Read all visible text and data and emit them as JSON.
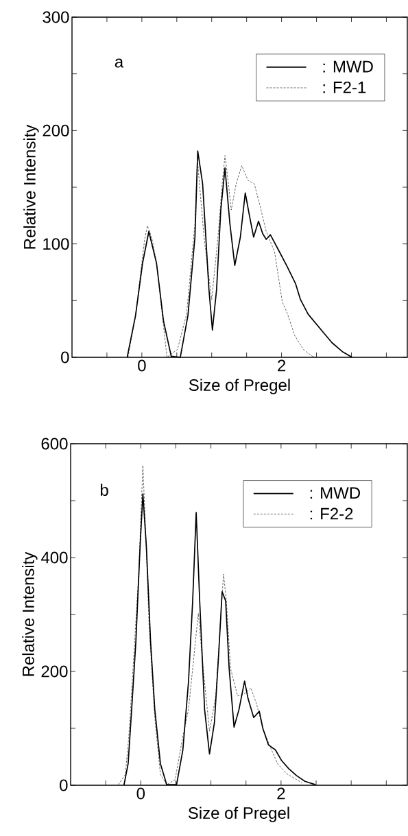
{
  "chart_data": [
    {
      "type": "line",
      "xlabel": "Size of Pregel",
      "ylabel": "Relative Intensity",
      "annotations": [
        "a"
      ],
      "legend": "top right",
      "xlim": [
        -1,
        3.8
      ],
      "ylim": [
        0,
        300
      ],
      "xticks": [
        {
          "value": -0.5,
          "label": null
        },
        0,
        {
          "value": 0.5,
          "label": null
        },
        {
          "value": 1,
          "label": null
        },
        {
          "value": 1.5,
          "label": null
        },
        2,
        {
          "value": 2.5,
          "label": null
        },
        {
          "value": 3,
          "label": null
        },
        {
          "value": 3.5,
          "label": null
        }
      ],
      "yticks": [
        0,
        {
          "value": 50,
          "label": null
        },
        100,
        {
          "value": 150,
          "label": null
        },
        200,
        {
          "value": 250,
          "label": null
        },
        300
      ],
      "series": [
        {
          "name": ": MWD",
          "color": "#000000",
          "line_style": "solid",
          "x": [
            -0.21,
            -0.09,
            0.01,
            0.1,
            0.21,
            0.31,
            0.42,
            0.55,
            0.66,
            0.76,
            0.8,
            0.87,
            0.96,
            1.01,
            1.07,
            1.13,
            1.19,
            1.26,
            1.33,
            1.41,
            1.48,
            1.54,
            1.6,
            1.67,
            1.73,
            1.78,
            1.84,
            1.97,
            2.08,
            2.2,
            2.27,
            2.38,
            2.61,
            2.72,
            2.87,
            3.01
          ],
          "values": [
            0,
            37,
            83,
            111,
            83,
            32,
            1,
            0,
            37,
            106,
            182,
            153,
            60,
            24,
            60,
            130,
            167,
            118,
            81,
            106,
            145,
            125,
            106,
            120,
            109,
            104,
            108,
            93,
            80,
            65,
            51,
            38,
            21,
            13,
            5,
            0
          ]
        },
        {
          "name": ": F2-1",
          "color": "#000000",
          "line_style": "dashed",
          "x": [
            -0.2,
            -0.09,
            0.04,
            0.08,
            0.14,
            0.21,
            0.36,
            0.51,
            0.64,
            0.76,
            0.79,
            0.8,
            0.89,
            1.0,
            1.09,
            1.15,
            1.19,
            1.24,
            1.28,
            1.35,
            1.43,
            1.52,
            1.61,
            1.69,
            1.78,
            1.9,
            2.01,
            2.08,
            2.19,
            2.31,
            2.44,
            2.49
          ],
          "values": [
            0,
            37,
            104,
            116,
            106,
            83,
            0,
            7,
            38,
            118,
            167,
            171,
            106,
            51,
            106,
            153,
            178,
            153,
            130,
            153,
            169,
            156,
            153,
            134,
            111,
            93,
            49,
            39,
            19,
            7,
            1,
            0
          ]
        }
      ]
    },
    {
      "type": "line",
      "xlabel": "Size of Pregel",
      "ylabel": "Relative Intensity",
      "annotations": [
        "b"
      ],
      "legend": "top right",
      "xlim": [
        -1,
        3.8
      ],
      "ylim": [
        0,
        600
      ],
      "xticks": [
        {
          "value": -0.5,
          "label": null
        },
        0,
        {
          "value": 0.5,
          "label": null
        },
        {
          "value": 1,
          "label": null
        },
        {
          "value": 1.5,
          "label": null
        },
        2,
        {
          "value": 2.5,
          "label": null
        },
        {
          "value": 3,
          "label": null
        },
        {
          "value": 3.5,
          "label": null
        }
      ],
      "yticks": [
        0,
        {
          "value": 100,
          "label": null
        },
        200,
        {
          "value": 300,
          "label": null
        },
        400,
        {
          "value": 500,
          "label": null
        },
        600
      ],
      "series": [
        {
          "name": ": MWD",
          "color": "#000000",
          "line_style": "solid",
          "x": [
            -0.24,
            -0.18,
            -0.13,
            -0.07,
            -0.01,
            0.03,
            0.08,
            0.14,
            0.2,
            0.28,
            0.37,
            0.51,
            0.6,
            0.68,
            0.74,
            0.79,
            0.84,
            0.91,
            0.98,
            1.05,
            1.11,
            1.16,
            1.21,
            1.26,
            1.33,
            1.4,
            1.48,
            1.53,
            1.61,
            1.69,
            1.74,
            1.82,
            1.92,
            2.01,
            2.11,
            2.22,
            2.34,
            2.49
          ],
          "values": [
            0,
            38,
            133,
            252,
            419,
            512,
            419,
            252,
            133,
            38,
            1,
            1,
            62,
            181,
            324,
            479,
            324,
            133,
            55,
            110,
            229,
            340,
            324,
            205,
            102,
            133,
            183,
            152,
            119,
            130,
            100,
            71,
            62,
            43,
            29,
            17,
            7,
            1
          ]
        },
        {
          "name": ": F2-2",
          "color": "#000000",
          "line_style": "dashed",
          "x": [
            -0.32,
            -0.22,
            -0.17,
            -0.11,
            -0.03,
            0.03,
            0.07,
            0.12,
            0.2,
            0.28,
            0.37,
            0.49,
            0.6,
            0.68,
            0.76,
            0.82,
            0.89,
            0.98,
            1.07,
            1.13,
            1.18,
            1.22,
            1.28,
            1.38,
            1.47,
            1.57,
            1.65,
            1.74,
            1.84,
            1.95,
            2.07,
            2.22,
            2.3
          ],
          "values": [
            1,
            19,
            86,
            205,
            371,
            562,
            443,
            276,
            119,
            19,
            1,
            10,
            86,
            133,
            229,
            302,
            205,
            95,
            157,
            276,
            371,
            324,
            205,
            157,
            160,
            171,
            143,
            100,
            69,
            38,
            21,
            10,
            4
          ]
        }
      ]
    }
  ]
}
